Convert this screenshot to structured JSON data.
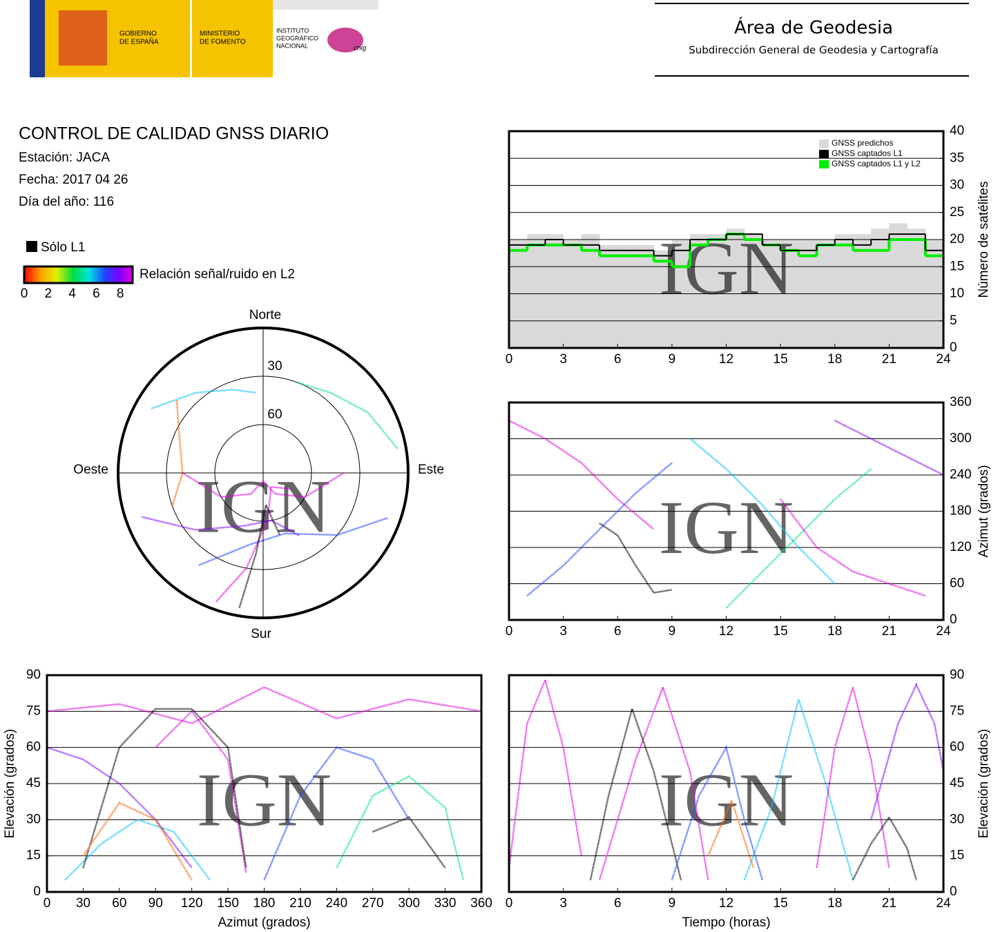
{
  "header": {
    "gov": [
      "GOBIERNO",
      "DE ESPAÑA"
    ],
    "ministry": [
      "MINISTERIO",
      "DE FOMENTO"
    ],
    "institute": [
      "INSTITUTO",
      "GEOGRÁFICO",
      "NACIONAL"
    ],
    "cnig": "cnig",
    "area": "Área de Geodesia",
    "subdirection": "Subdirección General de Geodesia y Cartografía"
  },
  "info": {
    "title": "CONTROL DE CALIDAD GNSS DIARIO",
    "station": "Estación: JACA",
    "date": "Fecha: 2017 04 26",
    "doy": "Día del año: 116"
  },
  "legend": {
    "l1_only": "Sólo L1",
    "snr_label": "Relación señal/ruido en L2",
    "snr_ticks": [
      0,
      2,
      4,
      6,
      8
    ]
  },
  "chart_data": [
    {
      "type": "step",
      "watermark": "IGN",
      "ylabel": "Número de satélites",
      "xlim": [
        0,
        24
      ],
      "xticks": [
        0,
        3,
        6,
        9,
        12,
        15,
        18,
        21,
        24
      ],
      "ylim": [
        0,
        40
      ],
      "yticks": [
        0,
        5,
        10,
        15,
        20,
        25,
        30,
        35,
        40
      ],
      "grid": true,
      "legend": "upper right",
      "x": [
        0,
        1,
        2,
        3,
        4,
        5,
        6,
        7,
        8,
        9,
        10,
        11,
        12,
        13,
        14,
        15,
        16,
        17,
        18,
        19,
        20,
        21,
        22,
        23
      ],
      "series": [
        {
          "name": "GNSS predichos",
          "color": "#d9d9d9",
          "values": [
            20,
            21,
            21,
            20,
            21,
            19,
            19,
            19,
            18,
            20,
            21,
            21,
            22,
            21,
            20,
            20,
            20,
            20,
            21,
            21,
            22,
            23,
            22,
            20
          ]
        },
        {
          "name": "GNSS captados L1",
          "color": "#000000",
          "values": [
            19,
            19,
            20,
            19,
            19,
            18,
            18,
            18,
            17,
            18,
            20,
            20,
            21,
            21,
            19,
            18,
            18,
            19,
            20,
            19,
            20,
            21,
            21,
            18
          ]
        },
        {
          "name": "GNSS captados L1 y L2",
          "color": "#00ee00",
          "values": [
            18,
            19,
            19,
            19,
            18,
            17,
            17,
            17,
            16,
            15,
            19,
            20,
            21,
            20,
            19,
            18,
            17,
            19,
            19,
            18,
            18,
            20,
            20,
            17
          ]
        }
      ]
    },
    {
      "type": "polar",
      "watermark": "IGN",
      "directions": {
        "north": "Norte",
        "south": "Sur",
        "west": "Oeste",
        "east": "Este"
      },
      "rlim": [
        90,
        0
      ],
      "rticks": [
        30,
        60
      ],
      "series": [
        {
          "color": "#e000e0",
          "azimuth": [
            200,
            190,
            175,
            150,
            120
          ],
          "elevation": [
            5,
            30,
            60,
            80,
            70
          ]
        },
        {
          "color": "#8000ff",
          "azimuth": [
            250,
            230,
            200,
            170,
            150
          ],
          "elevation": [
            10,
            35,
            55,
            60,
            45
          ]
        },
        {
          "color": "#2040ff",
          "azimuth": [
            110,
            130,
            160,
            190,
            215
          ],
          "elevation": [
            8,
            30,
            50,
            45,
            20
          ]
        },
        {
          "color": "#00c0ff",
          "azimuth": [
            300,
            320,
            340,
            355
          ],
          "elevation": [
            10,
            25,
            35,
            40
          ]
        },
        {
          "color": "#00e080",
          "azimuth": [
            20,
            40,
            60,
            80
          ],
          "elevation": [
            30,
            25,
            15,
            5
          ]
        },
        {
          "color": "#000000",
          "azimuth": [
            190,
            185,
            175,
            165
          ],
          "elevation": [
            5,
            40,
            70,
            50
          ]
        },
        {
          "color": "#ff6000",
          "azimuth": [
            310,
            290,
            270,
            250
          ],
          "elevation": [
            20,
            35,
            40,
            30
          ]
        },
        {
          "color": "#e000e0",
          "azimuth": [
            90,
            120,
            150,
            180,
            210,
            240,
            270
          ],
          "elevation": [
            40,
            60,
            75,
            85,
            75,
            60,
            40
          ]
        }
      ]
    },
    {
      "type": "line",
      "watermark": "IGN",
      "ylabel": "Azimut (grados)",
      "xlim": [
        0,
        24
      ],
      "xticks": [
        0,
        3,
        6,
        9,
        12,
        15,
        18,
        21,
        24
      ],
      "ylim": [
        0,
        360
      ],
      "yticks": [
        0,
        60,
        120,
        180,
        240,
        300,
        360
      ],
      "grid": true,
      "series": [
        {
          "color": "#e000e0",
          "x": [
            0,
            2,
            4,
            6,
            8
          ],
          "values": [
            330,
            300,
            260,
            200,
            150
          ]
        },
        {
          "color": "#2040ff",
          "x": [
            1,
            3,
            5,
            7,
            9
          ],
          "values": [
            40,
            90,
            150,
            210,
            260
          ]
        },
        {
          "color": "#00c0ff",
          "x": [
            10,
            12,
            14,
            16,
            18
          ],
          "values": [
            300,
            250,
            190,
            120,
            60
          ]
        },
        {
          "color": "#00e080",
          "x": [
            12,
            14,
            16,
            18,
            20
          ],
          "values": [
            20,
            80,
            140,
            200,
            250
          ]
        },
        {
          "color": "#000000",
          "x": [
            5,
            6,
            7,
            8,
            9
          ],
          "values": [
            160,
            140,
            90,
            45,
            50
          ]
        },
        {
          "color": "#e000e0",
          "x": [
            15,
            17,
            19,
            21,
            23
          ],
          "values": [
            200,
            120,
            80,
            60,
            40
          ]
        },
        {
          "color": "#8000ff",
          "x": [
            18,
            20,
            22,
            24
          ],
          "values": [
            330,
            300,
            270,
            240
          ]
        }
      ]
    },
    {
      "type": "line",
      "watermark": "IGN",
      "xlabel": "Azimut (grados)",
      "ylabel": "Elevación (grados)",
      "xlim": [
        0,
        360
      ],
      "xticks": [
        0,
        30,
        60,
        90,
        120,
        150,
        180,
        210,
        240,
        270,
        300,
        330,
        360
      ],
      "ylim": [
        0,
        90
      ],
      "yticks": [
        0,
        15,
        30,
        45,
        60,
        75,
        90
      ],
      "grid": true,
      "series": [
        {
          "color": "#e000e0",
          "x": [
            0,
            60,
            120,
            180,
            240,
            300,
            360
          ],
          "values": [
            75,
            78,
            70,
            85,
            72,
            80,
            75
          ]
        },
        {
          "color": "#e000e0",
          "x": [
            90,
            120,
            150,
            165
          ],
          "values": [
            60,
            75,
            55,
            8
          ]
        },
        {
          "color": "#8000ff",
          "x": [
            0,
            30,
            60,
            90,
            120
          ],
          "values": [
            60,
            55,
            45,
            30,
            10
          ]
        },
        {
          "color": "#2040ff",
          "x": [
            180,
            210,
            240,
            270,
            300
          ],
          "values": [
            5,
            40,
            60,
            55,
            30
          ]
        },
        {
          "color": "#00c0ff",
          "x": [
            15,
            45,
            75,
            105,
            135
          ],
          "values": [
            5,
            20,
            30,
            25,
            5
          ]
        },
        {
          "color": "#000000",
          "x": [
            30,
            60,
            90,
            120,
            150,
            165
          ],
          "values": [
            10,
            60,
            76,
            76,
            60,
            10
          ]
        },
        {
          "color": "#000000",
          "x": [
            270,
            300,
            330
          ],
          "values": [
            25,
            31,
            10
          ]
        },
        {
          "color": "#ff6000",
          "x": [
            30,
            60,
            90,
            120
          ],
          "values": [
            15,
            37,
            30,
            5
          ]
        },
        {
          "color": "#00e080",
          "x": [
            240,
            270,
            300,
            330,
            345
          ],
          "values": [
            10,
            40,
            48,
            35,
            5
          ]
        }
      ]
    },
    {
      "type": "line",
      "watermark": "IGN",
      "xlabel": "Tiempo (horas)",
      "ylabel": "Elevación (grados)",
      "xlim": [
        0,
        24
      ],
      "xticks": [
        0,
        3,
        6,
        9,
        12,
        15,
        18,
        21,
        24
      ],
      "ylim": [
        0,
        90
      ],
      "yticks": [
        0,
        15,
        30,
        45,
        60,
        75,
        90
      ],
      "grid": true,
      "series": [
        {
          "color": "#e000e0",
          "x": [
            0,
            1,
            2,
            3,
            4
          ],
          "values": [
            10,
            70,
            88,
            60,
            15
          ]
        },
        {
          "color": "#e000e0",
          "x": [
            5,
            7,
            8.5,
            10,
            11
          ],
          "values": [
            5,
            55,
            85,
            50,
            5
          ]
        },
        {
          "color": "#000000",
          "x": [
            4.5,
            5.5,
            6.8,
            8,
            9.5
          ],
          "values": [
            5,
            40,
            76,
            50,
            5
          ]
        },
        {
          "color": "#2040ff",
          "x": [
            9,
            10.5,
            12,
            13,
            14
          ],
          "values": [
            5,
            40,
            60,
            30,
            5
          ]
        },
        {
          "color": "#00c0ff",
          "x": [
            13,
            14.5,
            16,
            17.5,
            19
          ],
          "values": [
            5,
            35,
            80,
            45,
            5
          ]
        },
        {
          "color": "#e000e0",
          "x": [
            17,
            18,
            19,
            20,
            21
          ],
          "values": [
            10,
            60,
            85,
            55,
            10
          ]
        },
        {
          "color": "#000000",
          "x": [
            19,
            20,
            21,
            22,
            22.5
          ],
          "values": [
            5,
            20,
            31,
            18,
            5
          ]
        },
        {
          "color": "#ff6000",
          "x": [
            11,
            12.3,
            13.5
          ],
          "values": [
            15,
            38,
            10
          ]
        },
        {
          "color": "#8000ff",
          "x": [
            20,
            21.5,
            22.5,
            23.5,
            24
          ],
          "values": [
            30,
            70,
            86,
            70,
            50
          ]
        }
      ]
    }
  ]
}
